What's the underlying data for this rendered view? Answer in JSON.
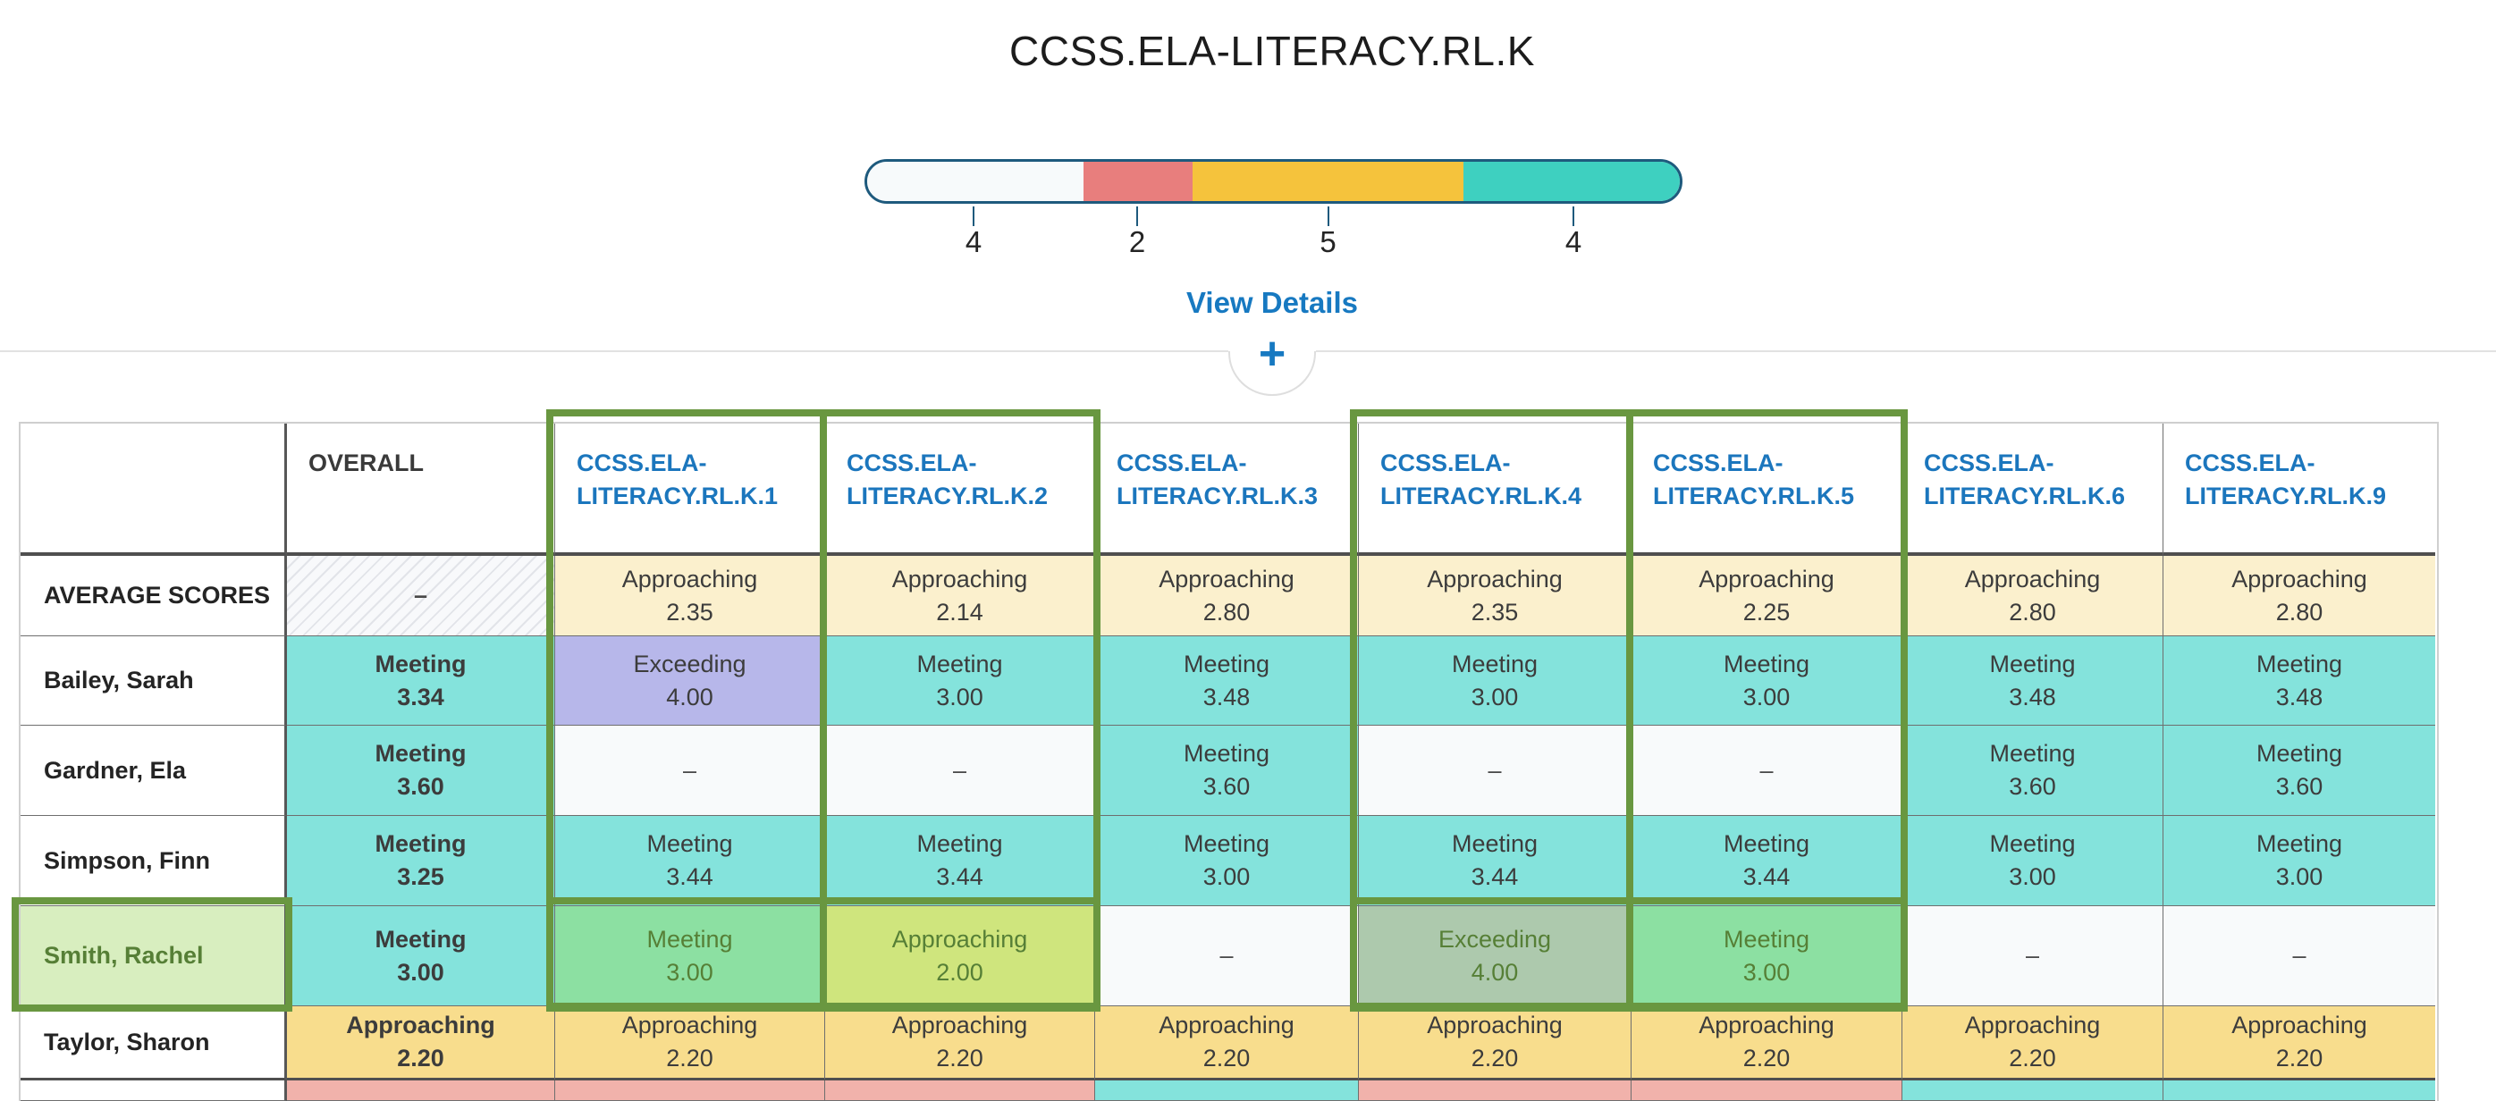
{
  "standard_summary": {
    "title": "CCSS.ELA-LITERACY.RL.K",
    "bar": {
      "border_color": "#1e5a7d",
      "segments": [
        {
          "name": "not-scored",
          "count": 4,
          "label": "4",
          "color": "#f7fafb"
        },
        {
          "name": "not-meeting",
          "count": 2,
          "label": "2",
          "color": "#e87e7d"
        },
        {
          "name": "approaching",
          "count": 5,
          "label": "5",
          "color": "#f5c33c"
        },
        {
          "name": "meeting",
          "count": 4,
          "label": "4",
          "color": "#3ed0c0"
        }
      ]
    },
    "view_details_label": "View Details",
    "expand_button_label": "+"
  },
  "grade_table": {
    "empty_marker": "–",
    "header": {
      "name_column": "",
      "labels": [
        "OVERALL",
        "CCSS.ELA-LITERACY.RL.K.1",
        "CCSS.ELA-LITERACY.RL.K.2",
        "CCSS.ELA-LITERACY.RL.K.3",
        "CCSS.ELA-LITERACY.RL.K.4",
        "CCSS.ELA-LITERACY.RL.K.5",
        "CCSS.ELA-LITERACY.RL.K.6",
        "CCSS.ELA-LITERACY.RL.K.9"
      ],
      "link_columns": [
        1,
        2,
        3,
        4,
        5,
        6,
        7
      ],
      "highlighted_columns": [
        1,
        2,
        4,
        5
      ]
    },
    "rows": [
      {
        "name": "AVERAGE SCORES",
        "type": "average",
        "cells": [
          {
            "style": "hatched",
            "dash": true
          },
          {
            "style": "approaching",
            "label": "Approaching",
            "value": "2.35"
          },
          {
            "style": "approaching",
            "label": "Approaching",
            "value": "2.14"
          },
          {
            "style": "approaching",
            "label": "Approaching",
            "value": "2.80"
          },
          {
            "style": "approaching",
            "label": "Approaching",
            "value": "2.35"
          },
          {
            "style": "approaching",
            "label": "Approaching",
            "value": "2.25"
          },
          {
            "style": "approaching",
            "label": "Approaching",
            "value": "2.80"
          },
          {
            "style": "approaching",
            "label": "Approaching",
            "value": "2.80"
          }
        ]
      },
      {
        "name": "Bailey, Sarah",
        "type": "student",
        "cells": [
          {
            "style": "meeting",
            "label": "Meeting",
            "value": "3.34"
          },
          {
            "style": "exceeding",
            "label": "Exceeding",
            "value": "4.00"
          },
          {
            "style": "meeting",
            "label": "Meeting",
            "value": "3.00"
          },
          {
            "style": "meeting",
            "label": "Meeting",
            "value": "3.48"
          },
          {
            "style": "meeting",
            "label": "Meeting",
            "value": "3.00"
          },
          {
            "style": "meeting",
            "label": "Meeting",
            "value": "3.00"
          },
          {
            "style": "meeting",
            "label": "Meeting",
            "value": "3.48"
          },
          {
            "style": "meeting",
            "label": "Meeting",
            "value": "3.48"
          }
        ]
      },
      {
        "name": "Gardner, Ela",
        "type": "student",
        "cells": [
          {
            "style": "meeting",
            "label": "Meeting",
            "value": "3.60"
          },
          {
            "style": "empty",
            "dash": true
          },
          {
            "style": "empty",
            "dash": true
          },
          {
            "style": "meeting",
            "label": "Meeting",
            "value": "3.60"
          },
          {
            "style": "empty",
            "dash": true
          },
          {
            "style": "empty",
            "dash": true
          },
          {
            "style": "meeting",
            "label": "Meeting",
            "value": "3.60"
          },
          {
            "style": "meeting",
            "label": "Meeting",
            "value": "3.60"
          }
        ]
      },
      {
        "name": "Simpson, Finn",
        "type": "student",
        "cells": [
          {
            "style": "meeting",
            "label": "Meeting",
            "value": "3.25"
          },
          {
            "style": "meeting",
            "label": "Meeting",
            "value": "3.44"
          },
          {
            "style": "meeting",
            "label": "Meeting",
            "value": "3.44"
          },
          {
            "style": "meeting",
            "label": "Meeting",
            "value": "3.00"
          },
          {
            "style": "meeting",
            "label": "Meeting",
            "value": "3.44"
          },
          {
            "style": "meeting",
            "label": "Meeting",
            "value": "3.44"
          },
          {
            "style": "meeting",
            "label": "Meeting",
            "value": "3.00"
          },
          {
            "style": "meeting",
            "label": "Meeting",
            "value": "3.00"
          }
        ]
      },
      {
        "name": "Smith, Rachel",
        "type": "student",
        "selected": true,
        "cells": [
          {
            "style": "meeting",
            "label": "Meeting",
            "value": "3.00"
          },
          {
            "style": "sel-meeting",
            "label": "Meeting",
            "value": "3.00"
          },
          {
            "style": "sel-approaching",
            "label": "Approaching",
            "value": "2.00"
          },
          {
            "style": "empty",
            "dash": true
          },
          {
            "style": "sel-exceeding",
            "label": "Exceeding",
            "value": "4.00"
          },
          {
            "style": "sel-meeting",
            "label": "Meeting",
            "value": "3.00"
          },
          {
            "style": "empty",
            "dash": true
          },
          {
            "style": "empty",
            "dash": true
          }
        ]
      },
      {
        "name": "Taylor, Sharon",
        "type": "student",
        "cells": [
          {
            "style": "gold",
            "label": "Approaching",
            "value": "2.20"
          },
          {
            "style": "gold",
            "label": "Approaching",
            "value": "2.20"
          },
          {
            "style": "gold",
            "label": "Approaching",
            "value": "2.20"
          },
          {
            "style": "gold",
            "label": "Approaching",
            "value": "2.20"
          },
          {
            "style": "gold",
            "label": "Approaching",
            "value": "2.20"
          },
          {
            "style": "gold",
            "label": "Approaching",
            "value": "2.20"
          },
          {
            "style": "gold",
            "label": "Approaching",
            "value": "2.20"
          },
          {
            "style": "gold",
            "label": "Approaching",
            "value": "2.20"
          }
        ]
      },
      {
        "name": "",
        "type": "partial",
        "cells_styles": [
          "pink",
          "pink",
          "pink",
          "meeting",
          "pink",
          "pink",
          "meeting",
          "meeting"
        ]
      }
    ]
  },
  "colors": {
    "selection_green": "#699740",
    "meeting_cell": "#84e3dc",
    "exceeding_cell": "#b7b7ea",
    "approaching_average_cell": "#fbf0cd",
    "approaching_student_cell": "#f8dd8d",
    "not_meeting_cell": "#f1b2ab",
    "empty_cell": "#f8fafb",
    "link_blue": "#1b76bd",
    "action_blue": "#1779c1"
  }
}
